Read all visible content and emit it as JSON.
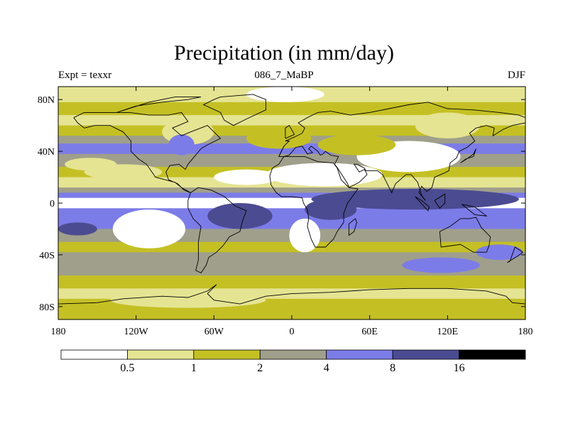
{
  "title": "Precipitation (in mm/day)",
  "subtitle_left": "Expt = texxr",
  "subtitle_center": "086_7_MaBP",
  "subtitle_right": "DJF",
  "map": {
    "lon_range": [
      -180,
      180
    ],
    "lat_range": [
      -90,
      90
    ],
    "lon_ticks": [
      {
        "value": -180,
        "label": "180"
      },
      {
        "value": -120,
        "label": "120W"
      },
      {
        "value": -60,
        "label": "60W"
      },
      {
        "value": 0,
        "label": "0"
      },
      {
        "value": 60,
        "label": "60E"
      },
      {
        "value": 120,
        "label": "120E"
      },
      {
        "value": 180,
        "label": "180"
      }
    ],
    "lat_ticks": [
      {
        "value": 80,
        "label": "80N"
      },
      {
        "value": 40,
        "label": "40N"
      },
      {
        "value": 0,
        "label": "0"
      },
      {
        "value": -40,
        "label": "40S"
      },
      {
        "value": -80,
        "label": "80S"
      }
    ]
  },
  "colorbar": {
    "levels": [
      {
        "label": "0.5"
      },
      {
        "label": "1"
      },
      {
        "label": "2"
      },
      {
        "label": "4"
      },
      {
        "label": "8"
      },
      {
        "label": "16"
      }
    ],
    "colors": [
      "#ffffff",
      "#e5e492",
      "#c4c024",
      "#a09f8b",
      "#7c7ce8",
      "#4b4b92",
      "#000000"
    ]
  },
  "bands": [
    {
      "lat_top": 90,
      "lat_bot": 78,
      "level": 1
    },
    {
      "lat_top": 78,
      "lat_bot": 68,
      "level": 2
    },
    {
      "lat_top": 68,
      "lat_bot": 60,
      "level": 1
    },
    {
      "lat_top": 60,
      "lat_bot": 52,
      "level": 2
    },
    {
      "lat_top": 52,
      "lat_bot": 46,
      "level": 3
    },
    {
      "lat_top": 46,
      "lat_bot": 38,
      "level": 4
    },
    {
      "lat_top": 38,
      "lat_bot": 28,
      "level": 3
    },
    {
      "lat_top": 28,
      "lat_bot": 20,
      "level": 2
    },
    {
      "lat_top": 20,
      "lat_bot": 12,
      "level": 1
    },
    {
      "lat_top": 12,
      "lat_bot": 8,
      "level": 3
    },
    {
      "lat_top": 8,
      "lat_bot": 4,
      "level": 4
    },
    {
      "lat_top": 4,
      "lat_bot": -4,
      "level": 0
    },
    {
      "lat_top": -4,
      "lat_bot": -8,
      "level": 4
    },
    {
      "lat_top": -8,
      "lat_bot": -20,
      "level": 4
    },
    {
      "lat_top": -20,
      "lat_bot": -30,
      "level": 3
    },
    {
      "lat_top": -30,
      "lat_bot": -38,
      "level": 2
    },
    {
      "lat_top": -38,
      "lat_bot": -56,
      "level": 3
    },
    {
      "lat_top": -56,
      "lat_bot": -66,
      "level": 2
    },
    {
      "lat_top": -66,
      "lat_bot": -74,
      "level": 1
    },
    {
      "lat_top": -74,
      "lat_bot": -90,
      "level": 2
    }
  ],
  "patches": [
    {
      "lon": -5,
      "lat": 84,
      "rlon": 30,
      "rlat": 6,
      "level": 0
    },
    {
      "lon": -130,
      "lat": 24,
      "rlon": 30,
      "rlat": 6,
      "level": 1
    },
    {
      "lon": 25,
      "lat": 22,
      "rlon": 45,
      "rlat": 9,
      "level": 0
    },
    {
      "lon": 90,
      "lat": 36,
      "rlon": 40,
      "rlat": 12,
      "level": 0
    },
    {
      "lon": -35,
      "lat": 20,
      "rlon": 25,
      "rlat": 6,
      "level": 0
    },
    {
      "lon": -155,
      "lat": 30,
      "rlon": 20,
      "rlat": 5,
      "level": 1
    },
    {
      "lon": -110,
      "lat": -20,
      "rlon": 28,
      "rlat": 15,
      "level": 0
    },
    {
      "lon": 10,
      "lat": -25,
      "rlon": 12,
      "rlat": 13,
      "level": 0
    },
    {
      "lon": -175,
      "lat": 0,
      "rlon": 15,
      "rlat": 3,
      "level": 0
    },
    {
      "lon": 95,
      "lat": 3,
      "rlon": 80,
      "rlat": 8,
      "level": 5
    },
    {
      "lon": -40,
      "lat": -10,
      "rlon": 25,
      "rlat": 10,
      "level": 5
    },
    {
      "lon": 30,
      "lat": -5,
      "rlon": 20,
      "rlat": 8,
      "level": 5
    },
    {
      "lon": -165,
      "lat": -20,
      "rlon": 15,
      "rlat": 5,
      "level": 5
    },
    {
      "lon": 115,
      "lat": -48,
      "rlon": 30,
      "rlat": 6,
      "level": 4
    },
    {
      "lon": 50,
      "lat": 45,
      "rlon": 30,
      "rlat": 8,
      "level": 2
    },
    {
      "lon": -10,
      "lat": 50,
      "rlon": 25,
      "rlat": 8,
      "level": 2
    },
    {
      "lon": -80,
      "lat": 55,
      "rlon": 20,
      "rlat": 10,
      "level": 1
    },
    {
      "lon": 120,
      "lat": 60,
      "rlon": 25,
      "rlat": 10,
      "level": 1
    },
    {
      "lon": 160,
      "lat": -38,
      "rlon": 18,
      "rlat": 6,
      "level": 4
    },
    {
      "lon": -85,
      "lat": 45,
      "rlon": 10,
      "rlat": 8,
      "level": 4
    },
    {
      "lon": -80,
      "lat": -75,
      "rlon": 60,
      "rlat": 6,
      "level": 1
    }
  ],
  "coastlines": [
    [
      [
        -168,
        66
      ],
      [
        -160,
        70
      ],
      [
        -140,
        70
      ],
      [
        -125,
        70
      ],
      [
        -110,
        68
      ],
      [
        -95,
        68
      ],
      [
        -85,
        70
      ],
      [
        -80,
        63
      ],
      [
        -92,
        58
      ],
      [
        -85,
        52
      ],
      [
        -78,
        55
      ],
      [
        -65,
        60
      ],
      [
        -60,
        55
      ],
      [
        -55,
        50
      ],
      [
        -65,
        45
      ],
      [
        -70,
        42
      ],
      [
        -75,
        36
      ],
      [
        -80,
        30
      ],
      [
        -82,
        26
      ],
      [
        -87,
        30
      ],
      [
        -94,
        29
      ],
      [
        -97,
        24
      ],
      [
        -95,
        18
      ],
      [
        -88,
        15
      ],
      [
        -83,
        10
      ],
      [
        -78,
        8
      ],
      [
        -85,
        12
      ],
      [
        -90,
        16
      ],
      [
        -105,
        20
      ],
      [
        -112,
        30
      ],
      [
        -118,
        34
      ],
      [
        -124,
        40
      ],
      [
        -124,
        48
      ],
      [
        -130,
        55
      ],
      [
        -140,
        60
      ],
      [
        -152,
        60
      ],
      [
        -160,
        58
      ],
      [
        -165,
        62
      ],
      [
        -168,
        66
      ]
    ],
    [
      [
        -55,
        82
      ],
      [
        -30,
        84
      ],
      [
        -20,
        80
      ],
      [
        -20,
        72
      ],
      [
        -35,
        65
      ],
      [
        -45,
        60
      ],
      [
        -52,
        64
      ],
      [
        -55,
        70
      ],
      [
        -68,
        76
      ],
      [
        -60,
        80
      ],
      [
        -55,
        82
      ]
    ],
    [
      [
        -78,
        8
      ],
      [
        -72,
        12
      ],
      [
        -62,
        10
      ],
      [
        -52,
        5
      ],
      [
        -44,
        -2
      ],
      [
        -35,
        -6
      ],
      [
        -38,
        -14
      ],
      [
        -40,
        -22
      ],
      [
        -48,
        -26
      ],
      [
        -53,
        -33
      ],
      [
        -58,
        -38
      ],
      [
        -64,
        -42
      ],
      [
        -66,
        -48
      ],
      [
        -70,
        -54
      ],
      [
        -74,
        -52
      ],
      [
        -72,
        -44
      ],
      [
        -72,
        -30
      ],
      [
        -70,
        -18
      ],
      [
        -76,
        -12
      ],
      [
        -80,
        -4
      ],
      [
        -80,
        2
      ],
      [
        -78,
        8
      ]
    ],
    [
      [
        -10,
        36
      ],
      [
        -6,
        44
      ],
      [
        -2,
        48
      ],
      [
        -5,
        48
      ],
      [
        2,
        51
      ],
      [
        8,
        54
      ],
      [
        10,
        58
      ],
      [
        5,
        62
      ],
      [
        12,
        66
      ],
      [
        20,
        70
      ],
      [
        30,
        71
      ],
      [
        45,
        68
      ],
      [
        60,
        70
      ],
      [
        75,
        73
      ],
      [
        90,
        76
      ],
      [
        105,
        78
      ],
      [
        120,
        73
      ],
      [
        140,
        72
      ],
      [
        160,
        70
      ],
      [
        175,
        68
      ],
      [
        180,
        66
      ]
    ],
    [
      [
        -10,
        36
      ],
      [
        -6,
        44
      ]
    ],
    [
      [
        180,
        62
      ],
      [
        170,
        60
      ],
      [
        163,
        57
      ],
      [
        155,
        52
      ],
      [
        156,
        58
      ],
      [
        150,
        60
      ],
      [
        142,
        58
      ],
      [
        137,
        54
      ],
      [
        141,
        48
      ],
      [
        135,
        43
      ],
      [
        129,
        40
      ],
      [
        127,
        35
      ],
      [
        122,
        31
      ],
      [
        121,
        25
      ],
      [
        117,
        23
      ],
      [
        110,
        20
      ],
      [
        108,
        12
      ],
      [
        104,
        9
      ],
      [
        100,
        13
      ],
      [
        98,
        8
      ],
      [
        103,
        2
      ],
      [
        100,
        6
      ],
      [
        97,
        16
      ],
      [
        92,
        22
      ],
      [
        88,
        22
      ],
      [
        80,
        15
      ],
      [
        77,
        8
      ],
      [
        73,
        16
      ],
      [
        70,
        22
      ],
      [
        66,
        25
      ],
      [
        57,
        25
      ],
      [
        56,
        27
      ],
      [
        50,
        30
      ],
      [
        48,
        30
      ],
      [
        52,
        24
      ],
      [
        56,
        26
      ],
      [
        58,
        22
      ],
      [
        52,
        16
      ],
      [
        44,
        12
      ],
      [
        43,
        15
      ],
      [
        36,
        26
      ],
      [
        33,
        30
      ],
      [
        36,
        36
      ],
      [
        30,
        37
      ],
      [
        26,
        40
      ],
      [
        24,
        38
      ],
      [
        22,
        37
      ],
      [
        20,
        40
      ],
      [
        15,
        44
      ],
      [
        13,
        42
      ],
      [
        16,
        39
      ],
      [
        12,
        38
      ],
      [
        8,
        44
      ],
      [
        3,
        43
      ],
      [
        -2,
        37
      ],
      [
        -6,
        36
      ],
      [
        -10,
        36
      ]
    ],
    [
      [
        -17,
        21
      ],
      [
        -16,
        14
      ],
      [
        -12,
        8
      ],
      [
        -8,
        5
      ],
      [
        0,
        5
      ],
      [
        8,
        4
      ],
      [
        9,
        0
      ],
      [
        12,
        -5
      ],
      [
        13,
        -12
      ],
      [
        12,
        -18
      ],
      [
        15,
        -28
      ],
      [
        18,
        -34
      ],
      [
        26,
        -34
      ],
      [
        32,
        -28
      ],
      [
        35,
        -22
      ],
      [
        40,
        -15
      ],
      [
        40,
        -8
      ],
      [
        43,
        0
      ],
      [
        51,
        11
      ],
      [
        44,
        12
      ],
      [
        38,
        18
      ],
      [
        35,
        27
      ],
      [
        32,
        31
      ],
      [
        20,
        32
      ],
      [
        10,
        36
      ],
      [
        0,
        36
      ],
      [
        -6,
        36
      ],
      [
        -10,
        30
      ],
      [
        -15,
        27
      ],
      [
        -17,
        21
      ]
    ],
    [
      [
        44,
        -25
      ],
      [
        48,
        -22
      ],
      [
        50,
        -15
      ],
      [
        49,
        -12
      ],
      [
        44,
        -16
      ],
      [
        44,
        -25
      ]
    ],
    [
      [
        114,
        -22
      ],
      [
        122,
        -18
      ],
      [
        130,
        -12
      ],
      [
        137,
        -12
      ],
      [
        142,
        -11
      ],
      [
        146,
        -19
      ],
      [
        153,
        -26
      ],
      [
        152,
        -33
      ],
      [
        150,
        -38
      ],
      [
        140,
        -38
      ],
      [
        135,
        -35
      ],
      [
        130,
        -32
      ],
      [
        115,
        -34
      ],
      [
        114,
        -22
      ]
    ],
    [
      [
        -180,
        -78
      ],
      [
        -150,
        -77
      ],
      [
        -130,
        -74
      ],
      [
        -100,
        -72
      ],
      [
        -80,
        -73
      ],
      [
        -65,
        -68
      ],
      [
        -58,
        -63
      ],
      [
        -65,
        -70
      ],
      [
        -60,
        -75
      ],
      [
        -40,
        -78
      ],
      [
        -20,
        -72
      ],
      [
        0,
        -70
      ],
      [
        30,
        -69
      ],
      [
        60,
        -67
      ],
      [
        90,
        -66
      ],
      [
        120,
        -66
      ],
      [
        150,
        -68
      ],
      [
        165,
        -72
      ],
      [
        170,
        -77
      ],
      [
        180,
        -78
      ]
    ],
    [
      [
        -5,
        50
      ],
      [
        -5,
        58
      ],
      [
        -2,
        60
      ],
      [
        2,
        53
      ],
      [
        -5,
        50
      ]
    ],
    [
      [
        130,
        31
      ],
      [
        134,
        34
      ],
      [
        140,
        36
      ],
      [
        142,
        42
      ],
      [
        140,
        38
      ],
      [
        136,
        35
      ],
      [
        130,
        31
      ]
    ],
    [
      [
        95,
        5
      ],
      [
        105,
        -6
      ],
      [
        106,
        -3
      ],
      [
        100,
        2
      ],
      [
        95,
        5
      ]
    ],
    [
      [
        110,
        2
      ],
      [
        118,
        7
      ],
      [
        118,
        0
      ],
      [
        114,
        -4
      ],
      [
        110,
        2
      ]
    ],
    [
      [
        131,
        -1
      ],
      [
        141,
        -3
      ],
      [
        150,
        -10
      ],
      [
        141,
        -9
      ],
      [
        131,
        -1
      ]
    ],
    [
      [
        166,
        -46
      ],
      [
        174,
        -41
      ],
      [
        178,
        -38
      ],
      [
        172,
        -34
      ],
      [
        168,
        -45
      ],
      [
        166,
        -46
      ]
    ],
    [
      [
        -135,
        70
      ],
      [
        -120,
        75
      ],
      [
        -100,
        78
      ],
      [
        -80,
        80
      ],
      [
        -70,
        82
      ],
      [
        -90,
        82
      ],
      [
        -110,
        78
      ],
      [
        -135,
        70
      ]
    ]
  ]
}
